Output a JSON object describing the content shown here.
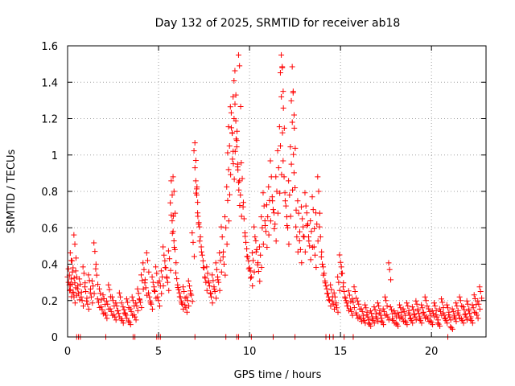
{
  "chart_data": {
    "type": "scatter",
    "title": "Day 132 of 2025, SRMTID for receiver ab18",
    "xlabel": "GPS time / hours",
    "ylabel": "SRMTID / TECUs",
    "xlim": [
      0,
      23
    ],
    "ylim": [
      0,
      1.6
    ],
    "xticks": [
      0,
      5,
      10,
      15,
      20
    ],
    "xtick_labels": [
      "0",
      "5",
      "10",
      "15",
      "20"
    ],
    "yticks": [
      0,
      0.2,
      0.4,
      0.6,
      0.8,
      1.0,
      1.2,
      1.4,
      1.6
    ],
    "ytick_labels": [
      "0",
      "0.2",
      "0.4",
      "0.6",
      "0.8",
      "1",
      "1.2",
      "1.4",
      "1.6"
    ],
    "grid": true,
    "marker": "+",
    "series_color": "#ff0000",
    "series": [
      {
        "name": "SRMTID",
        "points": [
          [
            0.05,
            0.3
          ],
          [
            0.1,
            0.34
          ],
          [
            0.15,
            0.26
          ],
          [
            0.2,
            0.42
          ],
          [
            0.25,
            0.29
          ],
          [
            0.3,
            0.38
          ],
          [
            0.35,
            0.22
          ],
          [
            0.4,
            0.51
          ],
          [
            0.45,
            0.27
          ],
          [
            0.5,
            0.33
          ],
          [
            0.6,
            0.24
          ],
          [
            0.7,
            0.29
          ],
          [
            0.8,
            0.2
          ],
          [
            0.9,
            0.35
          ],
          [
            1.0,
            0.25
          ],
          [
            1.1,
            0.18
          ],
          [
            1.2,
            0.31
          ],
          [
            1.3,
            0.22
          ],
          [
            1.4,
            0.28
          ],
          [
            1.5,
            0.47
          ],
          [
            1.6,
            0.34
          ],
          [
            1.7,
            0.19
          ],
          [
            1.8,
            0.24
          ],
          [
            1.9,
            0.15
          ],
          [
            2.0,
            0.21
          ],
          [
            2.1,
            0.12
          ],
          [
            2.2,
            0.18
          ],
          [
            2.3,
            0.26
          ],
          [
            2.4,
            0.14
          ],
          [
            2.5,
            0.2
          ],
          [
            2.6,
            0.11
          ],
          [
            2.7,
            0.17
          ],
          [
            2.8,
            0.13
          ],
          [
            2.9,
            0.22
          ],
          [
            3.0,
            0.09
          ],
          [
            3.1,
            0.15
          ],
          [
            3.2,
            0.12
          ],
          [
            3.3,
            0.19
          ],
          [
            3.4,
            0.08
          ],
          [
            3.5,
            0.14
          ],
          [
            3.6,
            0.2
          ],
          [
            3.7,
            0.11
          ],
          [
            3.8,
            0.17
          ],
          [
            3.9,
            0.24
          ],
          [
            4.0,
            0.19
          ],
          [
            4.1,
            0.31
          ],
          [
            4.2,
            0.37
          ],
          [
            4.3,
            0.27
          ],
          [
            4.4,
            0.42
          ],
          [
            4.5,
            0.22
          ],
          [
            4.6,
            0.18
          ],
          [
            4.7,
            0.3
          ],
          [
            4.8,
            0.25
          ],
          [
            4.9,
            0.35
          ],
          [
            5.0,
            0.2
          ],
          [
            5.1,
            0.28
          ],
          [
            5.2,
            0.33
          ],
          [
            5.3,
            0.45
          ],
          [
            5.4,
            0.38
          ],
          [
            5.5,
            0.3
          ],
          [
            5.6,
            0.43
          ],
          [
            5.7,
            0.67
          ],
          [
            5.75,
            0.78
          ],
          [
            5.8,
            0.58
          ],
          [
            5.85,
            0.8
          ],
          [
            5.9,
            0.48
          ],
          [
            6.0,
            0.32
          ],
          [
            6.1,
            0.26
          ],
          [
            6.2,
            0.22
          ],
          [
            6.3,
            0.18
          ],
          [
            6.4,
            0.25
          ],
          [
            6.5,
            0.16
          ],
          [
            6.6,
            0.2
          ],
          [
            6.7,
            0.28
          ],
          [
            6.8,
            0.23
          ],
          [
            6.9,
            0.52
          ],
          [
            7.0,
            0.93
          ],
          [
            7.05,
            0.97
          ],
          [
            7.1,
            0.78
          ],
          [
            7.15,
            0.74
          ],
          [
            7.2,
            0.62
          ],
          [
            7.3,
            0.55
          ],
          [
            7.4,
            0.45
          ],
          [
            7.5,
            0.38
          ],
          [
            7.6,
            0.3
          ],
          [
            7.7,
            0.35
          ],
          [
            7.8,
            0.28
          ],
          [
            7.9,
            0.22
          ],
          [
            8.0,
            0.31
          ],
          [
            8.1,
            0.25
          ],
          [
            8.2,
            0.37
          ],
          [
            8.3,
            0.3
          ],
          [
            8.4,
            0.42
          ],
          [
            8.5,
            0.55
          ],
          [
            8.6,
            0.4
          ],
          [
            8.7,
            0.6
          ],
          [
            8.8,
            0.75
          ],
          [
            8.85,
            0.92
          ],
          [
            8.9,
            1.05
          ],
          [
            9.0,
            1.15
          ],
          [
            9.05,
            1.12
          ],
          [
            9.1,
            1.02
          ],
          [
            9.15,
            1.2
          ],
          [
            9.2,
            1.28
          ],
          [
            9.25,
            1.33
          ],
          [
            9.3,
            1.08
          ],
          [
            9.35,
            0.95
          ],
          [
            9.4,
            0.85
          ],
          [
            9.45,
            1.49
          ],
          [
            9.5,
            0.78
          ],
          [
            9.6,
            0.87
          ],
          [
            9.7,
            0.65
          ],
          [
            9.8,
            0.52
          ],
          [
            9.9,
            0.44
          ],
          [
            10.0,
            0.38
          ],
          [
            10.1,
            0.33
          ],
          [
            10.2,
            0.42
          ],
          [
            10.3,
            0.55
          ],
          [
            10.4,
            0.48
          ],
          [
            10.5,
            0.36
          ],
          [
            10.6,
            0.45
          ],
          [
            10.7,
            0.6
          ],
          [
            10.8,
            0.72
          ],
          [
            10.9,
            0.58
          ],
          [
            11.0,
            0.66
          ],
          [
            11.1,
            0.75
          ],
          [
            11.2,
            0.88
          ],
          [
            11.3,
            0.7
          ],
          [
            11.4,
            0.62
          ],
          [
            11.5,
            0.8
          ],
          [
            11.6,
            0.93
          ],
          [
            11.7,
            1.05
          ],
          [
            11.75,
            1.32
          ],
          [
            11.8,
            1.48
          ],
          [
            11.85,
            1.35
          ],
          [
            11.9,
            0.88
          ],
          [
            12.0,
            0.72
          ],
          [
            12.1,
            0.6
          ],
          [
            12.2,
            0.78
          ],
          [
            12.3,
            0.95
          ],
          [
            12.35,
            1.18
          ],
          [
            12.4,
            1.35
          ],
          [
            12.45,
            1.22
          ],
          [
            12.5,
            0.82
          ],
          [
            12.6,
            0.55
          ],
          [
            12.7,
            0.68
          ],
          [
            12.8,
            0.48
          ],
          [
            12.9,
            0.65
          ],
          [
            13.0,
            0.55
          ],
          [
            13.1,
            0.72
          ],
          [
            13.2,
            0.62
          ],
          [
            13.3,
            0.5
          ],
          [
            13.4,
            0.58
          ],
          [
            13.5,
            0.7
          ],
          [
            13.6,
            0.45
          ],
          [
            13.7,
            0.62
          ],
          [
            13.8,
            0.8
          ],
          [
            13.9,
            0.55
          ],
          [
            14.0,
            0.4
          ],
          [
            14.1,
            0.35
          ],
          [
            14.2,
            0.28
          ],
          [
            14.3,
            0.24
          ],
          [
            14.4,
            0.2
          ],
          [
            14.5,
            0.26
          ],
          [
            14.6,
            0.18
          ],
          [
            14.7,
            0.22
          ],
          [
            14.8,
            0.16
          ],
          [
            14.9,
            0.3
          ],
          [
            15.0,
            0.41
          ],
          [
            15.1,
            0.35
          ],
          [
            15.2,
            0.25
          ],
          [
            15.3,
            0.2
          ],
          [
            15.4,
            0.17
          ],
          [
            15.5,
            0.23
          ],
          [
            15.6,
            0.14
          ],
          [
            15.7,
            0.19
          ],
          [
            15.8,
            0.25
          ],
          [
            15.9,
            0.12
          ],
          [
            16.0,
            0.18
          ],
          [
            16.1,
            0.1
          ],
          [
            16.2,
            0.14
          ],
          [
            16.3,
            0.09
          ],
          [
            16.4,
            0.16
          ],
          [
            16.5,
            0.11
          ],
          [
            16.6,
            0.07
          ],
          [
            16.7,
            0.13
          ],
          [
            16.8,
            0.09
          ],
          [
            16.9,
            0.15
          ],
          [
            17.0,
            0.1
          ],
          [
            17.1,
            0.17
          ],
          [
            17.2,
            0.12
          ],
          [
            17.3,
            0.08
          ],
          [
            17.4,
            0.14
          ],
          [
            17.5,
            0.2
          ],
          [
            17.6,
            0.11
          ],
          [
            17.7,
            0.37
          ],
          [
            17.8,
            0.15
          ],
          [
            17.9,
            0.09
          ],
          [
            18.0,
            0.13
          ],
          [
            18.1,
            0.07
          ],
          [
            18.2,
            0.12
          ],
          [
            18.3,
            0.16
          ],
          [
            18.4,
            0.1
          ],
          [
            18.5,
            0.14
          ],
          [
            18.6,
            0.08
          ],
          [
            18.7,
            0.17
          ],
          [
            18.8,
            0.12
          ],
          [
            18.9,
            0.09
          ],
          [
            19.0,
            0.15
          ],
          [
            19.1,
            0.11
          ],
          [
            19.2,
            0.18
          ],
          [
            19.3,
            0.13
          ],
          [
            19.4,
            0.09
          ],
          [
            19.5,
            0.16
          ],
          [
            19.6,
            0.12
          ],
          [
            19.7,
            0.2
          ],
          [
            19.8,
            0.1
          ],
          [
            19.9,
            0.14
          ],
          [
            20.0,
            0.08
          ],
          [
            20.1,
            0.13
          ],
          [
            20.2,
            0.17
          ],
          [
            20.3,
            0.11
          ],
          [
            20.4,
            0.07
          ],
          [
            20.5,
            0.14
          ],
          [
            20.6,
            0.19
          ],
          [
            20.7,
            0.12
          ],
          [
            20.8,
            0.09
          ],
          [
            20.9,
            0.16
          ],
          [
            21.0,
            0.11
          ],
          [
            21.1,
            0.05
          ],
          [
            21.2,
            0.14
          ],
          [
            21.3,
            0.1
          ],
          [
            21.4,
            0.17
          ],
          [
            21.5,
            0.12
          ],
          [
            21.6,
            0.2
          ],
          [
            21.7,
            0.09
          ],
          [
            21.8,
            0.15
          ],
          [
            21.9,
            0.11
          ],
          [
            22.0,
            0.18
          ],
          [
            22.1,
            0.13
          ],
          [
            22.2,
            0.09
          ],
          [
            22.3,
            0.16
          ],
          [
            22.4,
            0.21
          ],
          [
            22.5,
            0.12
          ],
          [
            22.6,
            0.18
          ],
          [
            22.7,
            0.25
          ]
        ]
      }
    ],
    "zero_markers_x": [
      0.5,
      0.6,
      0.7,
      2.1,
      3.6,
      3.7,
      4.9,
      5.0,
      5.1,
      7.0,
      8.7,
      9.3,
      9.4,
      10.1,
      11.3,
      12.5,
      14.2,
      14.4,
      14.6,
      15.2,
      15.7,
      20.9
    ]
  }
}
